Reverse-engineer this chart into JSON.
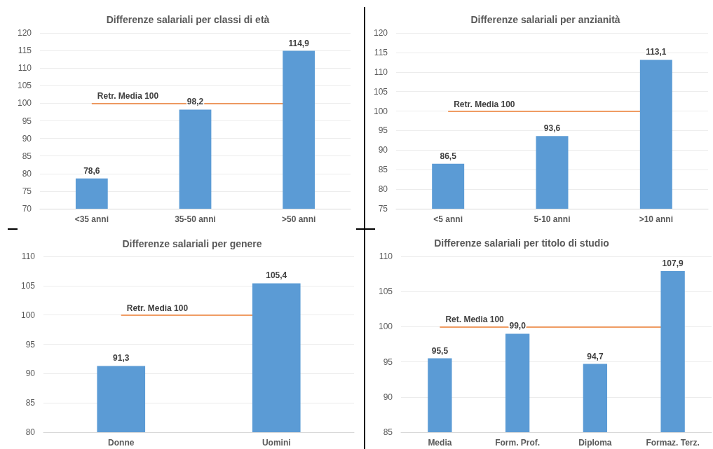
{
  "chart_data": [
    {
      "type": "bar",
      "title": "Differenze salariali per classi di età",
      "categories": [
        "<35 anni",
        "35-50 anni",
        ">50 anni"
      ],
      "values": [
        78.6,
        98.2,
        114.9
      ],
      "value_labels": [
        "78,6",
        "98,2",
        "114,9"
      ],
      "color": "#5b9bd5",
      "ylim": [
        70,
        120
      ],
      "yticks": [
        70,
        75,
        80,
        85,
        90,
        95,
        100,
        105,
        110,
        115,
        120
      ],
      "grid": "y",
      "ref_lines": [
        {
          "axis": "y",
          "value": 100,
          "label": "Retr. Media 100",
          "color": "#ed7d31"
        }
      ]
    },
    {
      "type": "bar",
      "title": "Differenze salariali per anzianità",
      "categories": [
        "<5 anni",
        "5-10 anni",
        ">10 anni"
      ],
      "values": [
        86.5,
        93.6,
        113.1
      ],
      "value_labels": [
        "86,5",
        "93,6",
        "113,1"
      ],
      "color": "#5b9bd5",
      "ylim": [
        75,
        120
      ],
      "yticks": [
        75,
        80,
        85,
        90,
        95,
        100,
        105,
        110,
        115,
        120
      ],
      "grid": "y",
      "ref_lines": [
        {
          "axis": "y",
          "value": 100,
          "label": "Retr. Media 100",
          "color": "#ed7d31"
        }
      ]
    },
    {
      "type": "bar",
      "title": "Differenze salariali per genere",
      "categories": [
        "Donne",
        "Uomini"
      ],
      "values": [
        91.3,
        105.4
      ],
      "value_labels": [
        "91,3",
        "105,4"
      ],
      "color": "#5b9bd5",
      "ylim": [
        80,
        110
      ],
      "yticks": [
        80,
        85,
        90,
        95,
        100,
        105,
        110
      ],
      "grid": "y",
      "ref_lines": [
        {
          "axis": "y",
          "value": 100,
          "label": "Retr. Media 100",
          "color": "#ed7d31"
        }
      ]
    },
    {
      "type": "bar",
      "title": "Differenze salariali per titolo di studio",
      "categories": [
        "Media",
        "Form. Prof.",
        "Diploma",
        "Formaz. Terz."
      ],
      "values": [
        95.5,
        99.0,
        94.7,
        107.9
      ],
      "value_labels": [
        "95,5",
        "99,0",
        "94,7",
        "107,9"
      ],
      "color": "#5b9bd5",
      "ylim": [
        85,
        110
      ],
      "yticks": [
        85,
        90,
        95,
        100,
        105,
        110
      ],
      "grid": "y",
      "ref_lines": [
        {
          "axis": "y",
          "value": 100,
          "label": "Ret. Media 100",
          "color": "#ed7d31"
        }
      ]
    }
  ]
}
